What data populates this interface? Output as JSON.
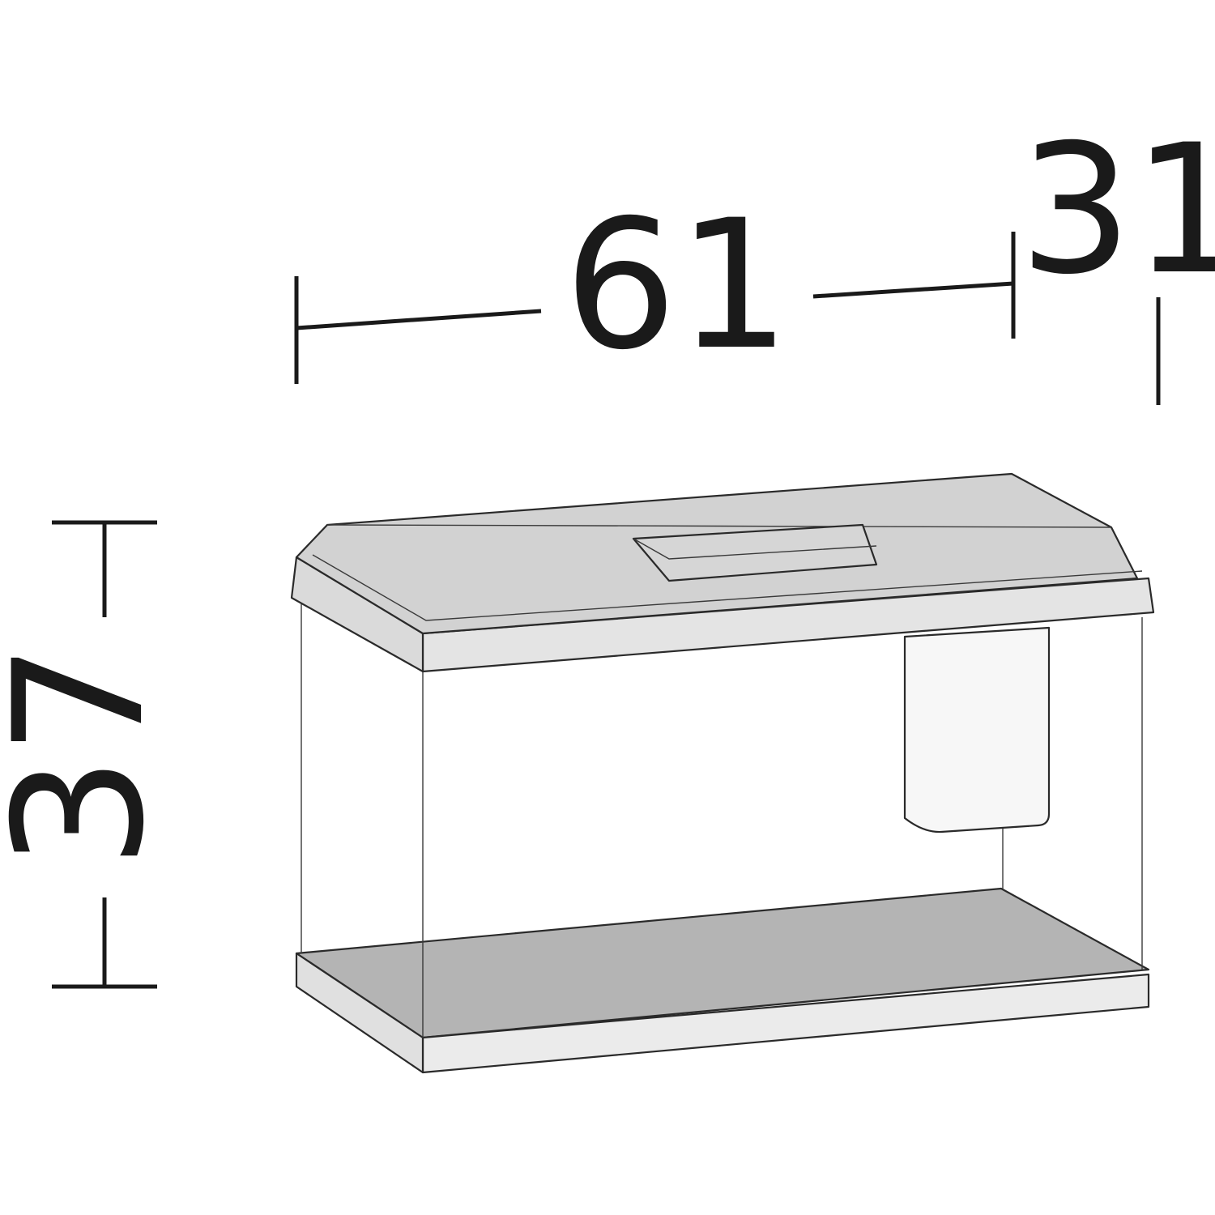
{
  "dimensions": {
    "width": "61",
    "depth": "31",
    "height": "37"
  },
  "colors": {
    "line": "#1a1a1a",
    "lid": "#d2d2d2",
    "lid_front": "#e4e4e4",
    "base_floor": "#b4b4b4",
    "base_front": "#ebebeb",
    "filter": "#f7f7f7",
    "background": "#ffffff"
  },
  "illustration": {
    "object": "aquarium-tank",
    "parts": [
      "lid",
      "lid-hatch",
      "glass-tank",
      "internal-filter",
      "base-tray"
    ]
  }
}
